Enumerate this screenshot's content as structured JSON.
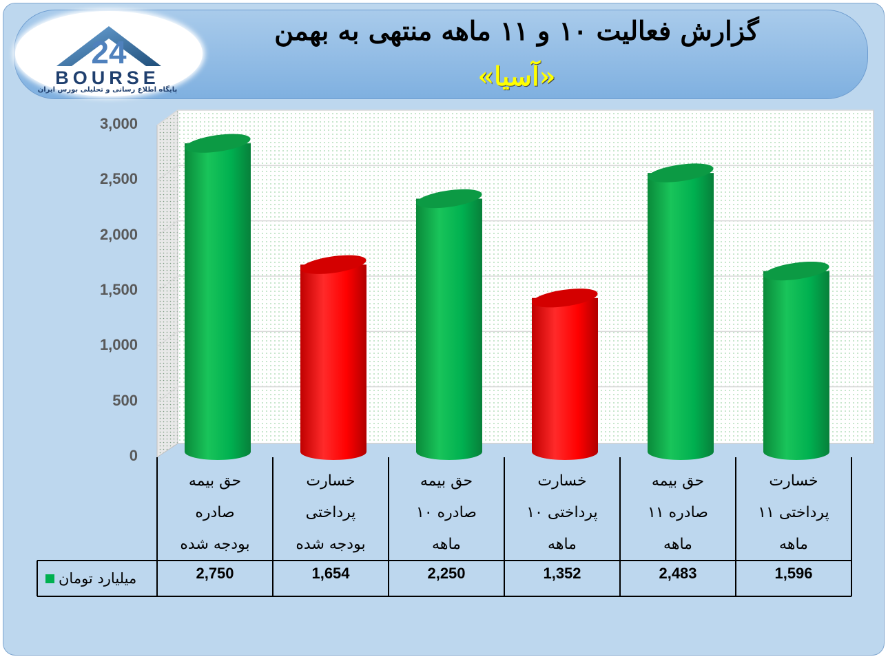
{
  "header": {
    "title": "گزارش فعالیت ۱۰ و ۱۱ ماهه منتهی به بهمن",
    "subtitle": "«آسیا»"
  },
  "logo": {
    "number": "24",
    "word": "BOURSE",
    "tagline": "پایگاه اطلاع رسانی و تحلیلی بورس ایران"
  },
  "colors": {
    "green": "#00b050",
    "red": "#ff0000"
  },
  "chart_data": {
    "type": "bar",
    "categories": [
      [
        "حق بیمه",
        "صادره",
        "بودجه شده"
      ],
      [
        "خسارت",
        "پرداختی",
        "بودجه شده"
      ],
      [
        "حق بیمه",
        "صادره ۱۰",
        "ماهه"
      ],
      [
        "خسارت",
        "پرداختی ۱۰",
        "ماهه"
      ],
      [
        "حق بیمه",
        "صادره ۱۱",
        "ماهه"
      ],
      [
        "خسارت",
        "پرداختی ۱۱",
        "ماهه"
      ]
    ],
    "series": [
      {
        "name": "میلیارد تومان",
        "values": [
          2750,
          1654,
          2250,
          1352,
          2483,
          1596
        ],
        "value_labels": [
          "2,750",
          "1,654",
          "2,250",
          "1,352",
          "2,483",
          "1,596"
        ],
        "bar_colors": [
          "#00b050",
          "#ff0000",
          "#00b050",
          "#ff0000",
          "#00b050",
          "#00b050"
        ]
      }
    ],
    "ylim": [
      0,
      3000
    ],
    "yticks": [
      0,
      500,
      1000,
      1500,
      2000,
      2500,
      3000
    ],
    "ytick_labels": [
      "0",
      "500",
      "1,000",
      "1,500",
      "2,000",
      "2,500",
      "3,000"
    ],
    "grid": true,
    "legend": "table-left"
  }
}
